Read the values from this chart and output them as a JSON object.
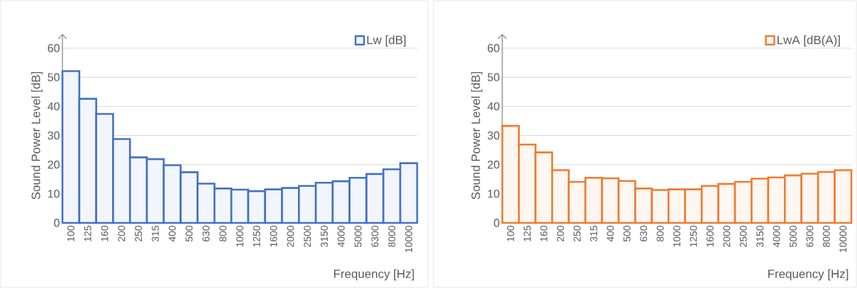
{
  "chart_data": [
    {
      "type": "bar",
      "categories": [
        "100",
        "125",
        "160",
        "200",
        "250",
        "315",
        "400",
        "500",
        "630",
        "800",
        "1000",
        "1250",
        "1600",
        "2000",
        "2500",
        "3150",
        "4000",
        "5000",
        "6300",
        "8000",
        "10000"
      ],
      "series": [
        {
          "name": "Lw [dB]",
          "color": "#4472c4",
          "values": [
            52.1,
            42.6,
            37.4,
            28.8,
            22.5,
            21.9,
            19.8,
            17.4,
            13.5,
            11.8,
            11.4,
            10.9,
            11.5,
            12.0,
            12.7,
            13.8,
            14.3,
            15.5,
            16.8,
            18.4,
            20.5
          ]
        }
      ],
      "xlabel": "Frequency [Hz]",
      "ylabel": "Sound Power Level [dB]",
      "ylim": [
        0,
        60
      ],
      "yticks": [
        0,
        10,
        20,
        30,
        40,
        50,
        60
      ],
      "grid": "y",
      "legend": "top right"
    },
    {
      "type": "bar",
      "categories": [
        "100",
        "125",
        "160",
        "200",
        "250",
        "315",
        "400",
        "500",
        "630",
        "800",
        "1000",
        "1250",
        "1600",
        "2000",
        "2500",
        "3150",
        "4000",
        "5000",
        "6300",
        "8000",
        "10000"
      ],
      "series": [
        {
          "name": "LwA [dB(A)]",
          "color": "#ed7d31",
          "values": [
            33.3,
            26.9,
            24.2,
            18.1,
            14.1,
            15.5,
            15.3,
            14.4,
            11.8,
            11.3,
            11.5,
            11.5,
            12.7,
            13.4,
            14.1,
            15.2,
            15.6,
            16.3,
            16.9,
            17.5,
            18.1
          ]
        }
      ],
      "xlabel": "Frequency [Hz]",
      "ylabel": "Sound Power Level [dB]",
      "ylim": [
        0,
        60
      ],
      "yticks": [
        0,
        10,
        20,
        30,
        40,
        50,
        60
      ],
      "grid": "y",
      "legend": "top right"
    }
  ]
}
